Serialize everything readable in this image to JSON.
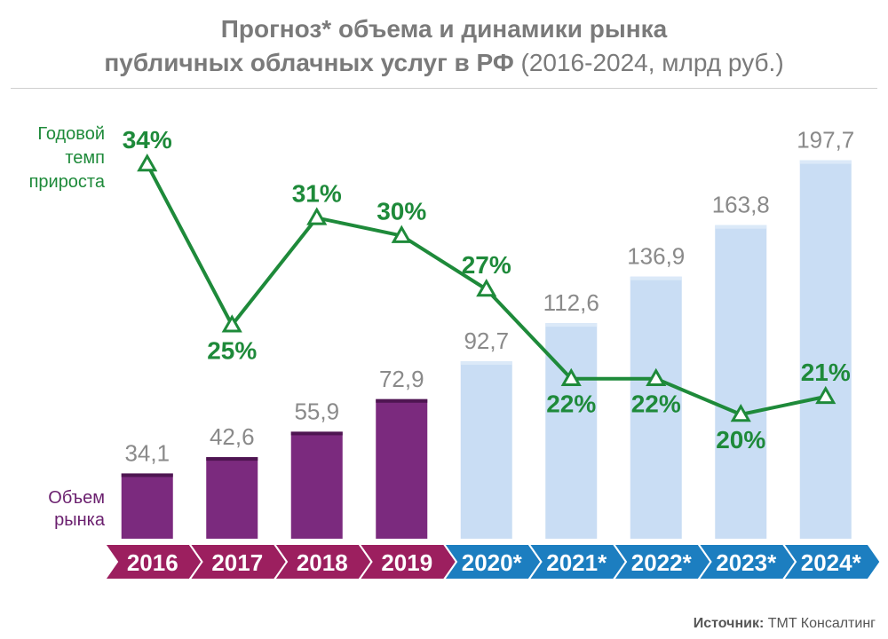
{
  "header": {
    "title_line1": "Прогноз* объема и динамики рынка",
    "title_line2_bold": "публичных облачных услуг в РФ",
    "title_line2_normal": "(2016-2024, млрд руб.)"
  },
  "labels": {
    "growth": [
      "Годовой",
      "темп",
      "прироста"
    ],
    "volume": [
      "Объем",
      "рынка"
    ]
  },
  "source": {
    "label": "Источник:",
    "value": "TMT Консалтинг"
  },
  "colors": {
    "actual_bar": "#7b2a7e",
    "forecast_bar": "#c9ddf4",
    "line": "#1e8a3a",
    "actual_band": "#9c1f5f",
    "forecast_band": "#1c7ec0",
    "value_text": "#8a8a8a"
  },
  "chart_data": {
    "type": "bar",
    "categories": [
      "2016",
      "2017",
      "2018",
      "2019",
      "2020*",
      "2021*",
      "2022*",
      "2023*",
      "2024*"
    ],
    "series": [
      {
        "name": "Объем рынка",
        "values": [
          34.1,
          42.6,
          55.9,
          72.9,
          92.7,
          112.6,
          136.9,
          163.8,
          197.7
        ],
        "value_labels": [
          "34,1",
          "42,6",
          "55,9",
          "72,9",
          "92,7",
          "112,6",
          "136,9",
          "163,8",
          "197,7"
        ],
        "forecast_from_index": 4
      },
      {
        "name": "Годовой темп прироста",
        "type": "line",
        "unit": "%",
        "values": [
          34,
          25,
          31,
          30,
          27,
          22,
          22,
          20,
          21
        ],
        "value_labels": [
          "34%",
          "25%",
          "31%",
          "30%",
          "27%",
          "22%",
          "22%",
          "20%",
          "21%"
        ],
        "marker": "triangle-outline"
      }
    ],
    "title": "Прогноз* объема и динамики рынка публичных облачных услуг в РФ (2016-2024, млрд руб.)",
    "xlabel": "",
    "ylabel": "",
    "ylim": [
      0,
      200
    ],
    "ylim_line": [
      17,
      36
    ],
    "grid": false,
    "legend": "none"
  }
}
